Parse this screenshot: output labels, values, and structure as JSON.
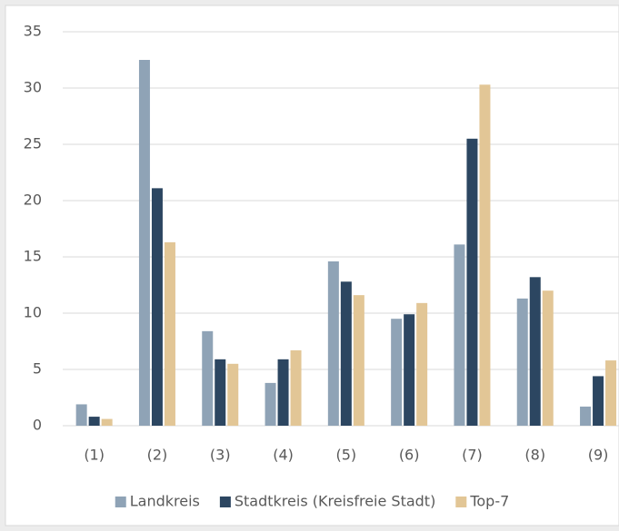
{
  "chart_data": {
    "type": "bar",
    "categories": [
      "(1)",
      "(2)",
      "(3)",
      "(4)",
      "(5)",
      "(6)",
      "(7)",
      "(8)",
      "(9)"
    ],
    "series": [
      {
        "name": "Landkreis",
        "color": "#8fa3b6",
        "values": [
          1.9,
          32.5,
          8.4,
          3.8,
          14.6,
          9.5,
          16.1,
          11.3,
          1.7
        ]
      },
      {
        "name": "Stadtkreis (Kreisfreie Stadt)",
        "color": "#2c4661",
        "values": [
          0.8,
          21.1,
          5.9,
          5.9,
          12.8,
          9.9,
          25.5,
          13.2,
          4.4
        ]
      },
      {
        "name": "Top-7",
        "color": "#e2c696",
        "values": [
          0.6,
          16.3,
          5.5,
          6.7,
          11.6,
          10.9,
          30.3,
          12.0,
          5.8
        ]
      }
    ],
    "ylim": [
      0,
      35
    ],
    "yticks": [
      0,
      5,
      10,
      15,
      20,
      25,
      30,
      35
    ],
    "grid": true,
    "legend": "bottom"
  }
}
